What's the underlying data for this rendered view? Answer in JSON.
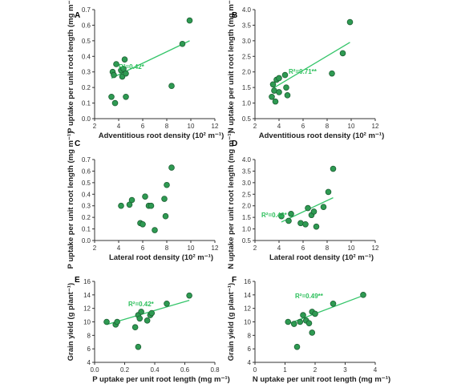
{
  "figure": {
    "point_color": "#2e9a52",
    "point_edge": "#1c5f33",
    "line_color": "#35c56a",
    "r2_color": "#2bbf5a"
  },
  "chart_data": [
    {
      "panel": "A",
      "type": "scatter",
      "xlabel": "Adventitious root density (10² m⁻¹)",
      "ylabel": "P uptake per unit root length (mg m⁻¹)",
      "xlim": [
        2,
        12
      ],
      "ylim": [
        0.0,
        0.7
      ],
      "xticks": [
        "2",
        "4",
        "6",
        "8",
        "10",
        "12"
      ],
      "yticks": [
        "0.0",
        "0.1",
        "0.2",
        "0.3",
        "0.4",
        "0.5",
        "0.6",
        "0.7"
      ],
      "points": [
        [
          3.4,
          0.14
        ],
        [
          3.5,
          0.3
        ],
        [
          3.6,
          0.28
        ],
        [
          3.7,
          0.1
        ],
        [
          3.8,
          0.35
        ],
        [
          4.2,
          0.31
        ],
        [
          4.3,
          0.27
        ],
        [
          4.4,
          0.32
        ],
        [
          4.5,
          0.38
        ],
        [
          4.6,
          0.29
        ],
        [
          4.6,
          0.14
        ],
        [
          8.4,
          0.21
        ],
        [
          9.3,
          0.48
        ],
        [
          9.9,
          0.63
        ]
      ],
      "fit": [
        [
          3.4,
          0.26
        ],
        [
          9.9,
          0.5
        ]
      ],
      "annotation": "R²=0.42*",
      "grid": false
    },
    {
      "panel": "B",
      "type": "scatter",
      "xlabel": "Adventitious root density (10² m⁻¹)",
      "ylabel": "N uptake per unit root length (mg m⁻¹)",
      "xlim": [
        2,
        12
      ],
      "ylim": [
        0.5,
        4.0
      ],
      "xticks": [
        "2",
        "4",
        "6",
        "8",
        "10",
        "12"
      ],
      "yticks": [
        "0.5",
        "1.0",
        "1.5",
        "2.0",
        "2.5",
        "3.0",
        "3.5",
        "4.0"
      ],
      "points": [
        [
          3.4,
          1.2
        ],
        [
          3.5,
          1.6
        ],
        [
          3.6,
          1.4
        ],
        [
          3.7,
          1.05
        ],
        [
          3.8,
          1.75
        ],
        [
          4.0,
          1.8
        ],
        [
          4.0,
          1.35
        ],
        [
          4.5,
          1.9
        ],
        [
          4.6,
          1.5
        ],
        [
          4.7,
          1.25
        ],
        [
          8.4,
          1.95
        ],
        [
          9.3,
          2.6
        ],
        [
          9.9,
          3.6
        ]
      ],
      "fit": [
        [
          3.4,
          1.45
        ],
        [
          9.9,
          2.95
        ]
      ],
      "annotation": "R²=0.71**",
      "grid": false
    },
    {
      "panel": "C",
      "type": "scatter",
      "xlabel": "Lateral root density (10² m⁻¹)",
      "ylabel": "P uptake per unit root length (mg m⁻¹)",
      "xlim": [
        2,
        12
      ],
      "ylim": [
        0.0,
        0.7
      ],
      "xticks": [
        "2",
        "4",
        "6",
        "8",
        "10",
        "12"
      ],
      "yticks": [
        "0.0",
        "0.1",
        "0.2",
        "0.3",
        "0.4",
        "0.5",
        "0.6",
        "0.7"
      ],
      "points": [
        [
          4.2,
          0.3
        ],
        [
          4.9,
          0.31
        ],
        [
          5.1,
          0.35
        ],
        [
          5.8,
          0.15
        ],
        [
          6.0,
          0.14
        ],
        [
          6.2,
          0.38
        ],
        [
          6.5,
          0.3
        ],
        [
          6.7,
          0.3
        ],
        [
          7.0,
          0.09
        ],
        [
          7.8,
          0.36
        ],
        [
          7.9,
          0.21
        ],
        [
          8.0,
          0.48
        ],
        [
          8.4,
          0.63
        ]
      ],
      "annotation": "",
      "grid": false
    },
    {
      "panel": "D",
      "type": "scatter",
      "xlabel": "Lateral root density (10² m⁻¹)",
      "ylabel": "N uptake per unit root length (mg m⁻¹)",
      "xlim": [
        2,
        12
      ],
      "ylim": [
        0.5,
        4.0
      ],
      "xticks": [
        "2",
        "4",
        "6",
        "8",
        "10",
        "12"
      ],
      "yticks": [
        "0.5",
        "1.0",
        "1.5",
        "2.0",
        "2.5",
        "3.0",
        "3.5",
        "4.0"
      ],
      "points": [
        [
          4.2,
          1.55
        ],
        [
          4.8,
          1.35
        ],
        [
          5.0,
          1.65
        ],
        [
          5.8,
          1.25
        ],
        [
          6.2,
          1.2
        ],
        [
          6.4,
          1.9
        ],
        [
          6.7,
          1.6
        ],
        [
          6.9,
          1.75
        ],
        [
          7.1,
          1.1
        ],
        [
          7.7,
          1.95
        ],
        [
          8.1,
          2.6
        ],
        [
          8.5,
          3.6
        ]
      ],
      "fit": [
        [
          4.2,
          1.3
        ],
        [
          8.5,
          2.35
        ]
      ],
      "annotation": "R²=0.42*",
      "grid": false
    },
    {
      "panel": "E",
      "type": "scatter",
      "xlabel": "P uptake per unit root length (mg m⁻¹)",
      "ylabel": "Grain yield (g plant⁻¹)",
      "xlim": [
        0.0,
        0.8
      ],
      "ylim": [
        4,
        16
      ],
      "xticks": [
        "0.0",
        "0.2",
        "0.4",
        "0.6",
        "0.8"
      ],
      "yticks": [
        "4",
        "6",
        "8",
        "10",
        "12",
        "14",
        "16"
      ],
      "points": [
        [
          0.08,
          10.0
        ],
        [
          0.14,
          9.6
        ],
        [
          0.15,
          10.0
        ],
        [
          0.27,
          9.2
        ],
        [
          0.29,
          11.0
        ],
        [
          0.3,
          10.5
        ],
        [
          0.31,
          11.5
        ],
        [
          0.35,
          10.2
        ],
        [
          0.37,
          11.0
        ],
        [
          0.38,
          11.3
        ],
        [
          0.29,
          6.3
        ],
        [
          0.48,
          12.7
        ],
        [
          0.63,
          13.9
        ]
      ],
      "fit": [
        [
          0.08,
          9.6
        ],
        [
          0.63,
          13.2
        ]
      ],
      "annotation": "R²=0.42*",
      "grid": false
    },
    {
      "panel": "F",
      "type": "scatter",
      "xlabel": "N uptake per unit root length (mg m⁻¹)",
      "ylabel": "Grain yield (g plant⁻¹)",
      "xlim": [
        0,
        4
      ],
      "ylim": [
        4,
        16
      ],
      "xticks": [
        "0",
        "1",
        "2",
        "3",
        "4"
      ],
      "yticks": [
        "4",
        "6",
        "8",
        "10",
        "12",
        "14",
        "16"
      ],
      "points": [
        [
          1.1,
          10.0
        ],
        [
          1.3,
          9.7
        ],
        [
          1.4,
          6.3
        ],
        [
          1.5,
          10.0
        ],
        [
          1.6,
          11.0
        ],
        [
          1.7,
          10.2
        ],
        [
          1.8,
          9.8
        ],
        [
          1.9,
          11.5
        ],
        [
          1.9,
          8.4
        ],
        [
          2.0,
          11.2
        ],
        [
          2.6,
          12.7
        ],
        [
          3.6,
          14.0
        ]
      ],
      "fit": [
        [
          1.1,
          9.7
        ],
        [
          3.6,
          13.9
        ]
      ],
      "annotation": "R²=0.49**",
      "grid": false
    }
  ]
}
